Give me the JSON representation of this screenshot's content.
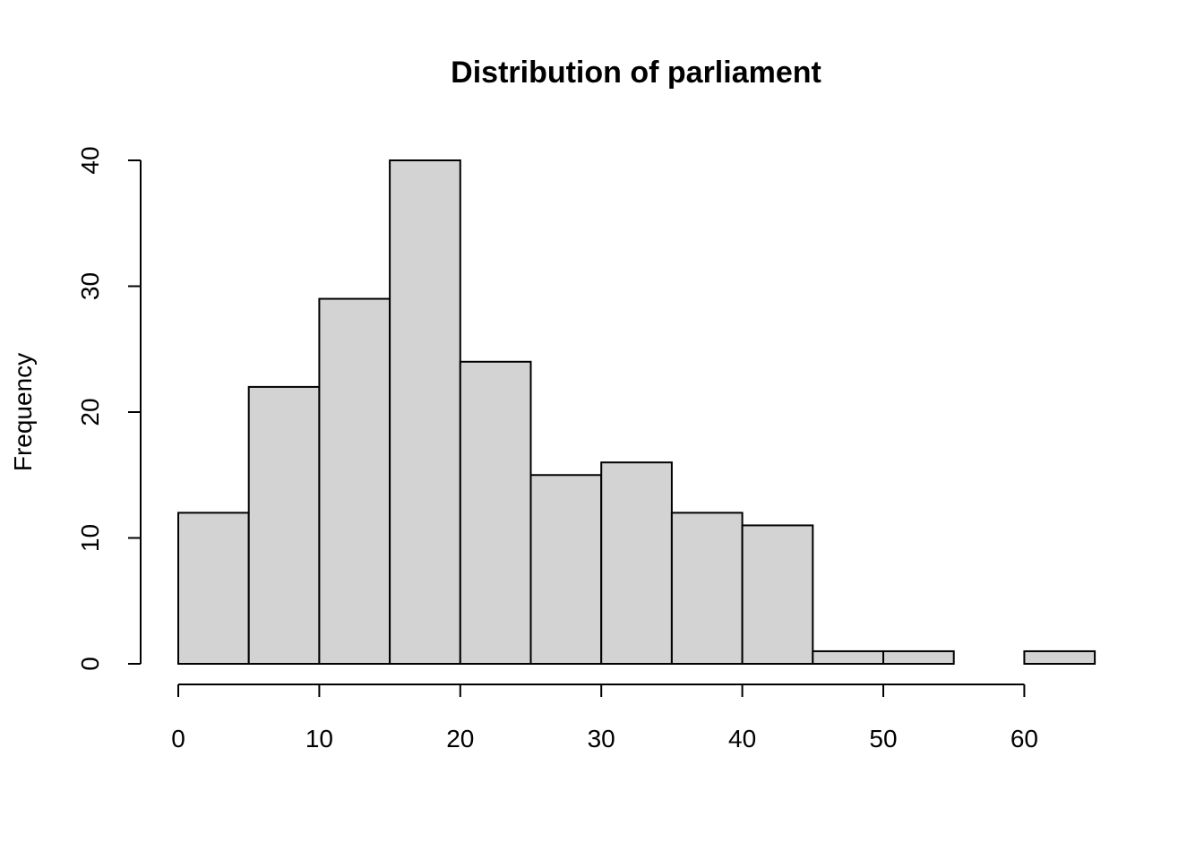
{
  "chart_data": {
    "type": "bar",
    "title": "Distribution of parliament",
    "xlabel": "",
    "ylabel": "Frequency",
    "bins": [
      {
        "start": 0,
        "end": 5,
        "count": 12
      },
      {
        "start": 5,
        "end": 10,
        "count": 22
      },
      {
        "start": 10,
        "end": 15,
        "count": 29
      },
      {
        "start": 15,
        "end": 20,
        "count": 40
      },
      {
        "start": 20,
        "end": 25,
        "count": 24
      },
      {
        "start": 25,
        "end": 30,
        "count": 15
      },
      {
        "start": 30,
        "end": 35,
        "count": 16
      },
      {
        "start": 35,
        "end": 40,
        "count": 12
      },
      {
        "start": 40,
        "end": 45,
        "count": 11
      },
      {
        "start": 45,
        "end": 50,
        "count": 1
      },
      {
        "start": 50,
        "end": 55,
        "count": 1
      },
      {
        "start": 55,
        "end": 60,
        "count": 0
      },
      {
        "start": 60,
        "end": 65,
        "count": 1
      }
    ],
    "x_ticks": [
      "0",
      "10",
      "20",
      "30",
      "40",
      "50",
      "60"
    ],
    "y_ticks": [
      "0",
      "10",
      "20",
      "30",
      "40"
    ],
    "xlim": [
      0,
      65
    ],
    "ylim": [
      0,
      40
    ],
    "grid": false,
    "bar_color": "#d3d3d3",
    "border_color": "#000000"
  }
}
